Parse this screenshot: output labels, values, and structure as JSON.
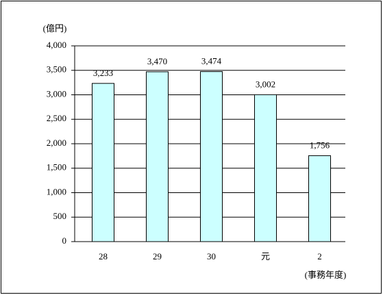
{
  "chart_data": {
    "type": "bar",
    "y_label": "(億円)",
    "x_label": "(事務年度)",
    "categories": [
      "28",
      "29",
      "30",
      "元",
      "2"
    ],
    "values": [
      3233,
      3470,
      3474,
      3002,
      1756
    ],
    "value_labels": [
      "3,233",
      "3,470",
      "3,474",
      "3,002",
      "1,756"
    ],
    "color": "#ccffff",
    "ylim": [
      0,
      4000
    ],
    "yticks": [
      0,
      500,
      {
        "value": 1000,
        "label": "1,000"
      },
      {
        "value": 1500,
        "label": "1,500"
      },
      {
        "value": 2000,
        "label": "2,000"
      },
      {
        "value": 2500,
        "label": "2,500"
      },
      {
        "value": 3000,
        "label": "3,000"
      },
      {
        "value": 3500,
        "label": "3,500"
      },
      {
        "value": 4000,
        "label": "4,000"
      }
    ],
    "grid": true
  }
}
